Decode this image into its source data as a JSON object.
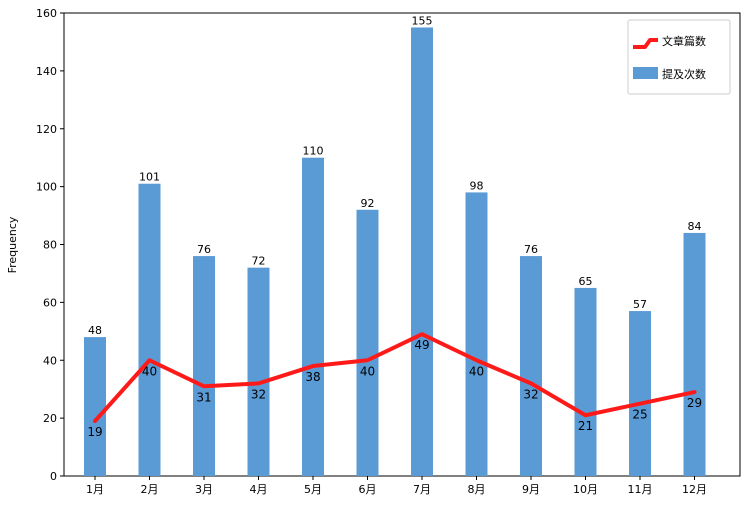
{
  "chart_data": {
    "type": "bar",
    "categories": [
      "1月",
      "2月",
      "3月",
      "4月",
      "5月",
      "6月",
      "7月",
      "8月",
      "9月",
      "10月",
      "11月",
      "12月"
    ],
    "series": [
      {
        "name": "提及次数",
        "type": "bar",
        "color": "#5b9bd5",
        "values": [
          48,
          101,
          76,
          72,
          110,
          92,
          155,
          98,
          76,
          65,
          57,
          84
        ]
      },
      {
        "name": "文章篇数",
        "type": "line",
        "color": "#ff1a1a",
        "values": [
          19,
          40,
          31,
          32,
          38,
          40,
          49,
          40,
          32,
          21,
          25,
          29
        ]
      }
    ],
    "title": "",
    "xlabel": "",
    "ylabel": "Frequency",
    "ylim": [
      0,
      160
    ],
    "yticks": [
      0,
      20,
      40,
      60,
      80,
      100,
      120,
      140,
      160
    ],
    "grid": false,
    "legend_position": "top-right"
  }
}
